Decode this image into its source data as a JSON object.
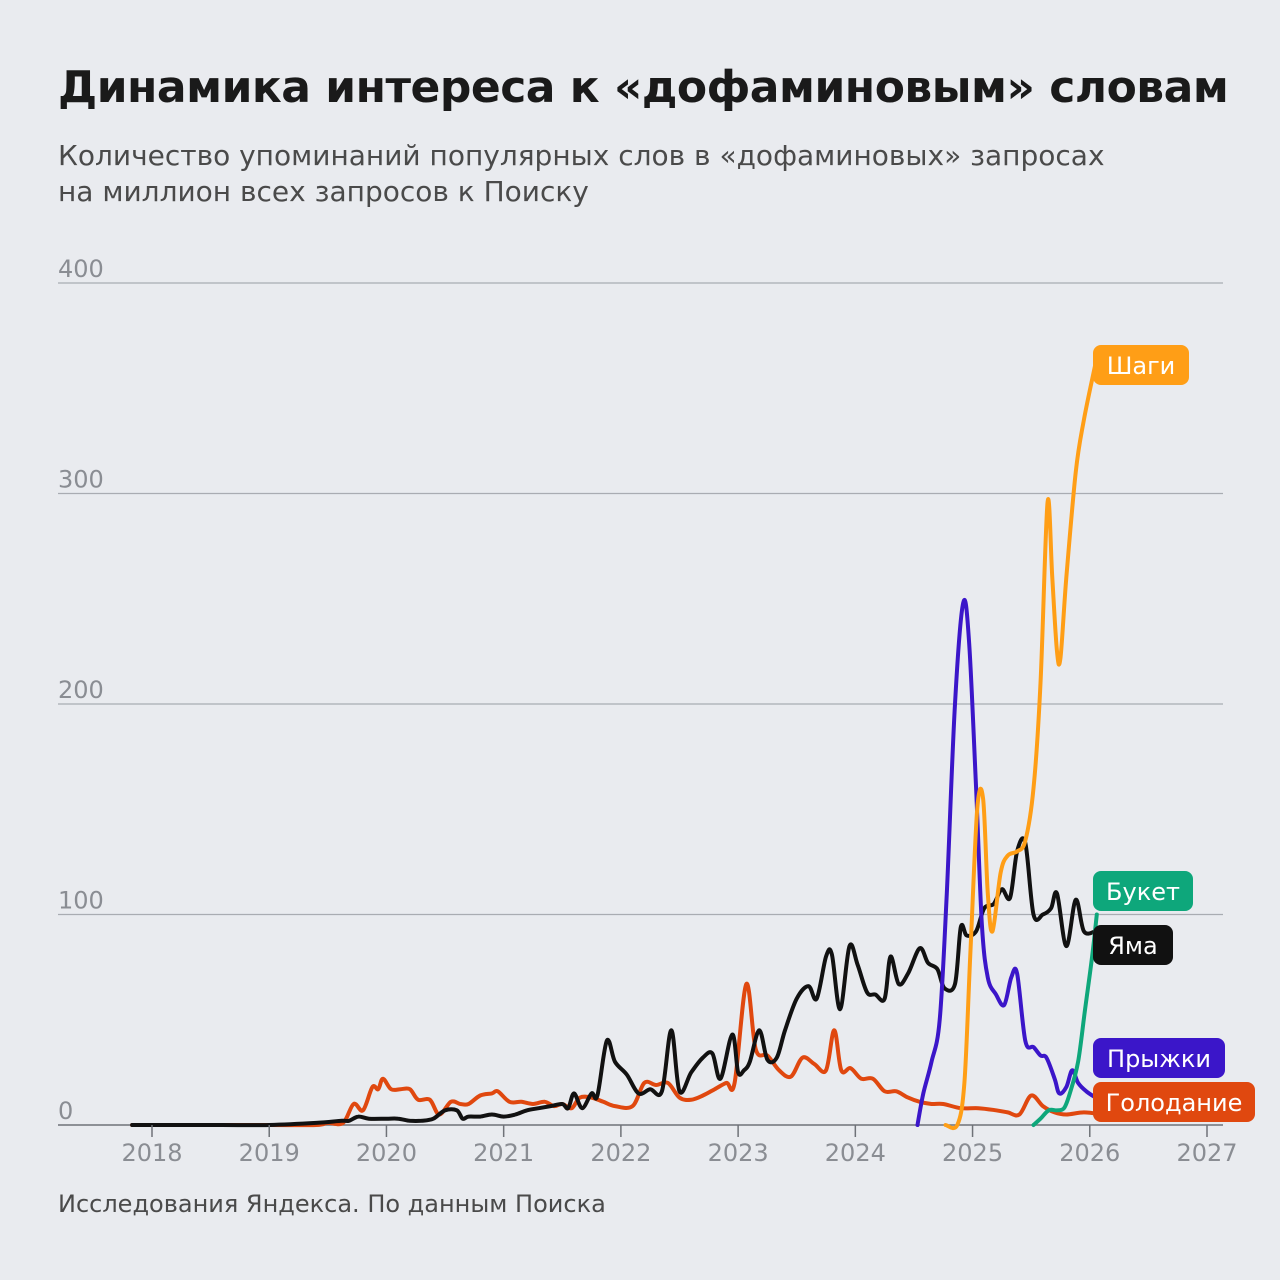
{
  "header": {
    "title": "Динамика интереса к «дофаминовым» словам",
    "subtitle_line1": "Количество упоминаний популярных слов в «дофаминовых» запросах",
    "subtitle_line2": "на миллион всех запросов к Поиску"
  },
  "footer": {
    "source": "Исследования Яндекса. По данным Поиска"
  },
  "chart_data": {
    "type": "line",
    "title": "Динамика интереса к «дофаминовым» словам",
    "subtitle": "Количество упоминаний популярных слов в «дофаминовых» запросах на миллион всех запросов к Поиску",
    "xlabel": "",
    "ylabel": "",
    "xlim": [
      2017.8,
      2027.2
    ],
    "ylim": [
      0,
      400
    ],
    "x_ticks": [
      "2018",
      "2019",
      "2020",
      "2021",
      "2022",
      "2023",
      "2024",
      "2025",
      "2026",
      "2027"
    ],
    "y_ticks": [
      0,
      100,
      200,
      300,
      400
    ],
    "grid": "horizontal",
    "legend": "inline labels at line ends (right)",
    "series": [
      {
        "name": "Голодание",
        "color": "#e0480f",
        "points": [
          [
            2017.83,
            0
          ],
          [
            2018.5,
            0
          ],
          [
            2019.0,
            0
          ],
          [
            2019.4,
            0
          ],
          [
            2019.5,
            1
          ],
          [
            2019.63,
            1
          ],
          [
            2019.72,
            10
          ],
          [
            2019.8,
            7
          ],
          [
            2019.88,
            18
          ],
          [
            2019.93,
            17
          ],
          [
            2019.97,
            22
          ],
          [
            2020.04,
            17
          ],
          [
            2020.12,
            17
          ],
          [
            2020.2,
            17
          ],
          [
            2020.27,
            12
          ],
          [
            2020.37,
            12
          ],
          [
            2020.45,
            5
          ],
          [
            2020.55,
            11
          ],
          [
            2020.63,
            10
          ],
          [
            2020.7,
            10
          ],
          [
            2020.8,
            14
          ],
          [
            2020.9,
            15
          ],
          [
            2020.95,
            16
          ],
          [
            2021.05,
            11
          ],
          [
            2021.15,
            11
          ],
          [
            2021.25,
            10
          ],
          [
            2021.35,
            11
          ],
          [
            2021.43,
            9
          ],
          [
            2021.5,
            10
          ],
          [
            2021.58,
            8
          ],
          [
            2021.65,
            13
          ],
          [
            2021.75,
            13
          ],
          [
            2021.85,
            11
          ],
          [
            2021.95,
            9
          ],
          [
            2022.1,
            9
          ],
          [
            2022.2,
            20
          ],
          [
            2022.3,
            19
          ],
          [
            2022.4,
            20
          ],
          [
            2022.5,
            13
          ],
          [
            2022.6,
            12
          ],
          [
            2022.7,
            14
          ],
          [
            2022.8,
            17
          ],
          [
            2022.9,
            20
          ],
          [
            2022.97,
            20
          ],
          [
            2023.07,
            67
          ],
          [
            2023.15,
            36
          ],
          [
            2023.25,
            33
          ],
          [
            2023.35,
            26
          ],
          [
            2023.45,
            23
          ],
          [
            2023.55,
            32
          ],
          [
            2023.65,
            29
          ],
          [
            2023.75,
            26
          ],
          [
            2023.82,
            45
          ],
          [
            2023.88,
            26
          ],
          [
            2023.96,
            27
          ],
          [
            2024.05,
            22
          ],
          [
            2024.15,
            22
          ],
          [
            2024.25,
            16
          ],
          [
            2024.35,
            16
          ],
          [
            2024.45,
            13
          ],
          [
            2024.55,
            11
          ],
          [
            2024.65,
            10
          ],
          [
            2024.75,
            10
          ],
          [
            2024.9,
            8
          ],
          [
            2025.05,
            8
          ],
          [
            2025.2,
            7
          ],
          [
            2025.3,
            6
          ],
          [
            2025.4,
            5
          ],
          [
            2025.5,
            14
          ],
          [
            2025.6,
            9
          ],
          [
            2025.7,
            6
          ],
          [
            2025.8,
            5
          ],
          [
            2025.95,
            6
          ],
          [
            2026.1,
            5
          ]
        ]
      },
      {
        "name": "Яма",
        "color": "#111111",
        "points": [
          [
            2017.83,
            0
          ],
          [
            2018.2,
            0
          ],
          [
            2018.6,
            0
          ],
          [
            2019.0,
            0
          ],
          [
            2019.4,
            1
          ],
          [
            2019.62,
            2
          ],
          [
            2019.68,
            2
          ],
          [
            2019.76,
            4
          ],
          [
            2019.85,
            3
          ],
          [
            2020.0,
            3
          ],
          [
            2020.1,
            3
          ],
          [
            2020.2,
            2
          ],
          [
            2020.3,
            2
          ],
          [
            2020.4,
            3
          ],
          [
            2020.5,
            7
          ],
          [
            2020.6,
            7
          ],
          [
            2020.65,
            3
          ],
          [
            2020.7,
            4
          ],
          [
            2020.8,
            4
          ],
          [
            2020.9,
            5
          ],
          [
            2021.0,
            4
          ],
          [
            2021.1,
            5
          ],
          [
            2021.2,
            7
          ],
          [
            2021.3,
            8
          ],
          [
            2021.4,
            9
          ],
          [
            2021.5,
            10
          ],
          [
            2021.55,
            8
          ],
          [
            2021.6,
            15
          ],
          [
            2021.67,
            8
          ],
          [
            2021.75,
            15
          ],
          [
            2021.8,
            14
          ],
          [
            2021.88,
            40
          ],
          [
            2021.95,
            30
          ],
          [
            2022.05,
            24
          ],
          [
            2022.15,
            15
          ],
          [
            2022.25,
            17
          ],
          [
            2022.35,
            16
          ],
          [
            2022.43,
            45
          ],
          [
            2022.5,
            16
          ],
          [
            2022.6,
            25
          ],
          [
            2022.7,
            32
          ],
          [
            2022.78,
            34
          ],
          [
            2022.85,
            22
          ],
          [
            2022.95,
            43
          ],
          [
            2023.0,
            25
          ],
          [
            2023.05,
            26
          ],
          [
            2023.1,
            30
          ],
          [
            2023.18,
            45
          ],
          [
            2023.25,
            31
          ],
          [
            2023.33,
            32
          ],
          [
            2023.4,
            45
          ],
          [
            2023.5,
            60
          ],
          [
            2023.6,
            66
          ],
          [
            2023.67,
            60
          ],
          [
            2023.75,
            80
          ],
          [
            2023.8,
            81
          ],
          [
            2023.87,
            55
          ],
          [
            2023.95,
            85
          ],
          [
            2024.02,
            76
          ],
          [
            2024.1,
            63
          ],
          [
            2024.17,
            62
          ],
          [
            2024.25,
            60
          ],
          [
            2024.3,
            80
          ],
          [
            2024.37,
            67
          ],
          [
            2024.45,
            72
          ],
          [
            2024.55,
            84
          ],
          [
            2024.62,
            77
          ],
          [
            2024.7,
            74
          ],
          [
            2024.76,
            65
          ],
          [
            2024.85,
            67
          ],
          [
            2024.9,
            94
          ],
          [
            2024.95,
            90
          ],
          [
            2025.03,
            92
          ],
          [
            2025.1,
            103
          ],
          [
            2025.18,
            105
          ],
          [
            2025.25,
            112
          ],
          [
            2025.32,
            108
          ],
          [
            2025.38,
            130
          ],
          [
            2025.45,
            134
          ],
          [
            2025.52,
            100
          ],
          [
            2025.6,
            100
          ],
          [
            2025.67,
            103
          ],
          [
            2025.72,
            110
          ],
          [
            2025.8,
            85
          ],
          [
            2025.88,
            107
          ],
          [
            2025.95,
            92
          ],
          [
            2026.05,
            92
          ]
        ]
      },
      {
        "name": "Прыжки",
        "color": "#3b16c9",
        "points": [
          [
            2024.53,
            0
          ],
          [
            2024.58,
            15
          ],
          [
            2024.65,
            30
          ],
          [
            2024.72,
            50
          ],
          [
            2024.78,
            110
          ],
          [
            2024.85,
            200
          ],
          [
            2024.92,
            248
          ],
          [
            2024.97,
            230
          ],
          [
            2025.03,
            160
          ],
          [
            2025.08,
            95
          ],
          [
            2025.13,
            70
          ],
          [
            2025.2,
            62
          ],
          [
            2025.27,
            57
          ],
          [
            2025.33,
            70
          ],
          [
            2025.38,
            72
          ],
          [
            2025.45,
            40
          ],
          [
            2025.52,
            37
          ],
          [
            2025.58,
            33
          ],
          [
            2025.63,
            32
          ],
          [
            2025.7,
            22
          ],
          [
            2025.74,
            15
          ],
          [
            2025.8,
            18
          ],
          [
            2025.85,
            26
          ],
          [
            2025.9,
            20
          ],
          [
            2025.97,
            16
          ],
          [
            2026.05,
            13
          ]
        ]
      },
      {
        "name": "Шаги",
        "color": "#ff9e16",
        "points": [
          [
            2024.77,
            0
          ],
          [
            2024.87,
            0
          ],
          [
            2024.93,
            20
          ],
          [
            2024.98,
            80
          ],
          [
            2025.04,
            150
          ],
          [
            2025.09,
            155
          ],
          [
            2025.13,
            110
          ],
          [
            2025.17,
            92
          ],
          [
            2025.24,
            120
          ],
          [
            2025.3,
            128
          ],
          [
            2025.38,
            130
          ],
          [
            2025.45,
            135
          ],
          [
            2025.52,
            160
          ],
          [
            2025.58,
            210
          ],
          [
            2025.64,
            296
          ],
          [
            2025.68,
            260
          ],
          [
            2025.72,
            225
          ],
          [
            2025.75,
            222
          ],
          [
            2025.8,
            260
          ],
          [
            2025.88,
            310
          ],
          [
            2025.95,
            335
          ],
          [
            2026.05,
            362
          ]
        ]
      },
      {
        "name": "Букет",
        "color": "#0ea77b",
        "points": [
          [
            2025.52,
            0
          ],
          [
            2025.58,
            3
          ],
          [
            2025.65,
            7
          ],
          [
            2025.72,
            7
          ],
          [
            2025.78,
            8
          ],
          [
            2025.83,
            15
          ],
          [
            2025.9,
            30
          ],
          [
            2025.96,
            55
          ],
          [
            2026.02,
            80
          ],
          [
            2026.06,
            100
          ]
        ]
      }
    ]
  }
}
